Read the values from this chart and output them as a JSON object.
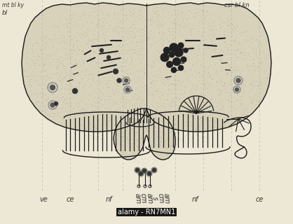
{
  "bg_color": "#ede8d5",
  "brain_fill": "#d8d2bb",
  "lower_fill": "#e8e4d0",
  "outline_color": "#1a1a1a",
  "dot_color": "#555555",
  "label_top_left": "bl",
  "label_top_right": "csr bl kn",
  "label_top_extra": "mt bl ky",
  "watermark": "alamy - RN7MN1",
  "dashed_color": "#999999",
  "spine_fill": "#ccc8b0"
}
